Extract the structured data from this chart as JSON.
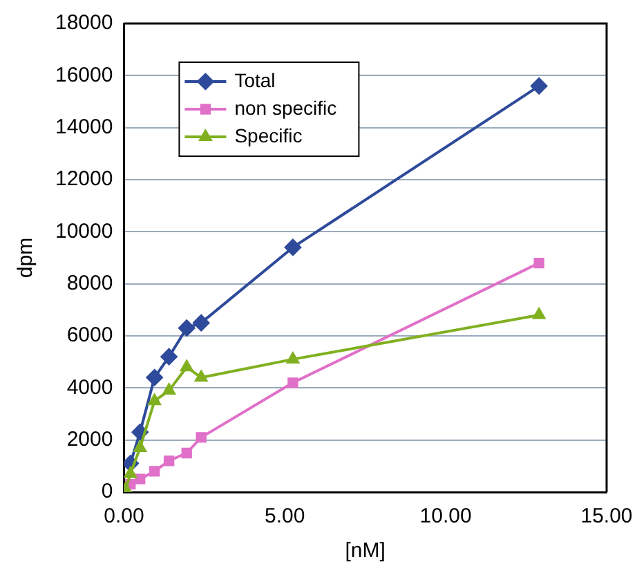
{
  "chart_data": {
    "type": "line",
    "xlabel": "[nM]",
    "ylabel": "dpm",
    "xlim": [
      0,
      15
    ],
    "xticks": [
      {
        "value": 0,
        "label": "0.00"
      },
      {
        "value": 5,
        "label": "5.00"
      },
      {
        "value": 10,
        "label": "10.00"
      },
      {
        "value": 15,
        "label": "15.00"
      }
    ],
    "ylim": [
      0,
      18000
    ],
    "yticks": [
      0,
      2000,
      4000,
      6000,
      8000,
      10000,
      12000,
      14000,
      16000,
      18000
    ],
    "grid": "y",
    "legend": "top left",
    "series": [
      {
        "name": "Total",
        "color": "#2e4a9a",
        "marker": "diamond",
        "x": [
          0.2,
          0.5,
          0.95,
          1.4,
          1.95,
          2.4,
          5.25,
          12.9
        ],
        "values": [
          1100,
          2300,
          4400,
          5200,
          6300,
          6500,
          9400,
          15600
        ]
      },
      {
        "name": "non specific",
        "color": "#e070c8",
        "marker": "square",
        "x": [
          0.05,
          0.2,
          0.5,
          0.95,
          1.4,
          1.95,
          2.4,
          5.25,
          12.9
        ],
        "values": [
          100,
          300,
          500,
          800,
          1200,
          1500,
          2100,
          4200,
          8800
        ]
      },
      {
        "name": "Specific",
        "color": "#80b020",
        "marker": "triangle",
        "x": [
          0.05,
          0.2,
          0.5,
          0.95,
          1.4,
          1.95,
          2.4,
          5.25,
          12.9
        ],
        "values": [
          100,
          700,
          1700,
          3500,
          3900,
          4800,
          4400,
          5100,
          6800
        ]
      }
    ]
  }
}
